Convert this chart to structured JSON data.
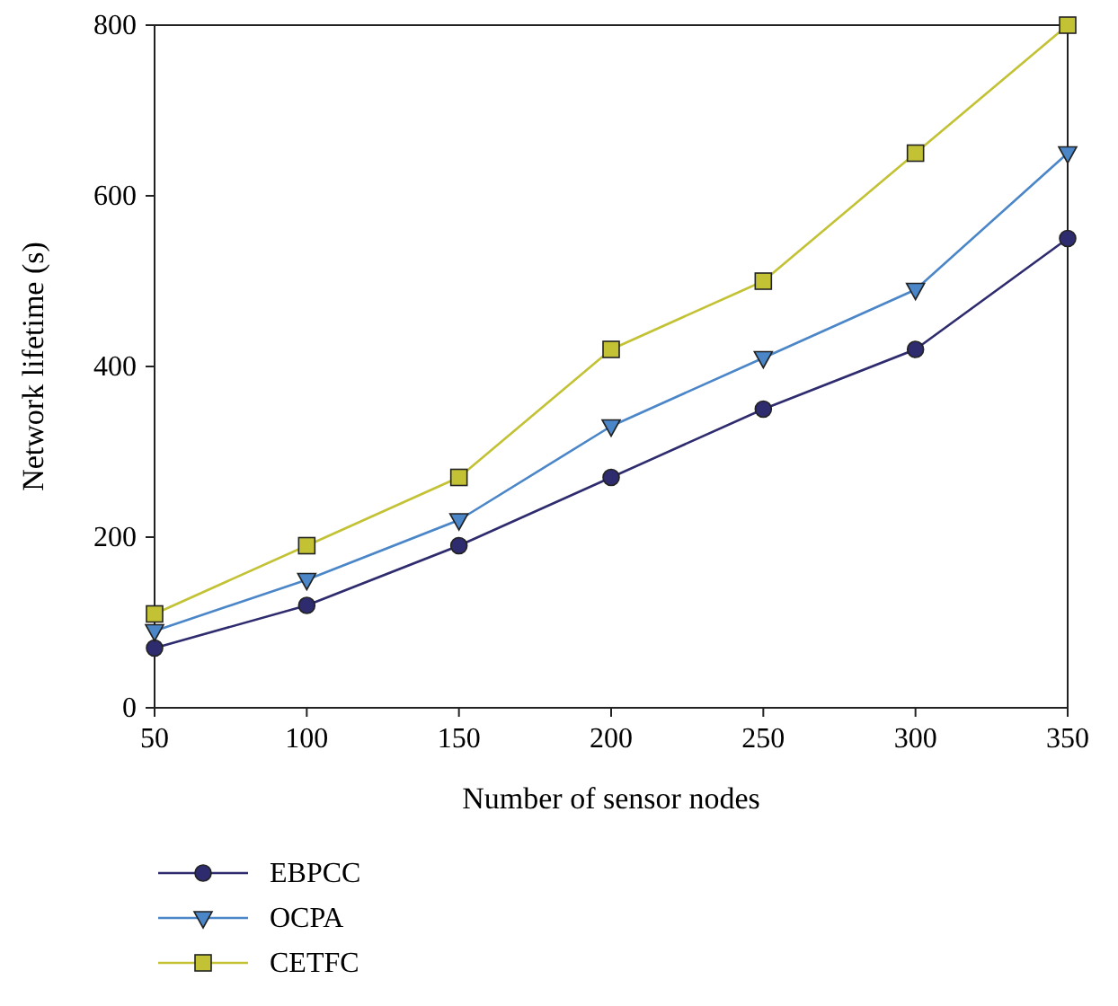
{
  "chart_data": {
    "type": "line",
    "xlabel": "Number of sensor nodes",
    "ylabel": "Network lifetime (s)",
    "x": [
      50,
      100,
      150,
      200,
      250,
      300,
      350
    ],
    "xlim": [
      50,
      350
    ],
    "xticks": [
      50,
      100,
      150,
      200,
      250,
      300,
      350
    ],
    "ylim": [
      0,
      800
    ],
    "yticks": [
      0,
      200,
      400,
      600,
      800
    ],
    "grid": false,
    "legend": "bottom",
    "line_style": "solid",
    "series": [
      {
        "name": "EBPCC",
        "color": "#2e2b6e",
        "marker": "circle",
        "values": [
          70,
          120,
          190,
          270,
          350,
          420,
          550
        ]
      },
      {
        "name": "OCPA",
        "color": "#4a86c8",
        "marker": "triangle",
        "values": [
          90,
          150,
          220,
          330,
          410,
          490,
          650
        ]
      },
      {
        "name": "CETFC",
        "color": "#c2c234",
        "marker": "square",
        "values": [
          110,
          190,
          270,
          420,
          500,
          650,
          800
        ]
      }
    ]
  }
}
